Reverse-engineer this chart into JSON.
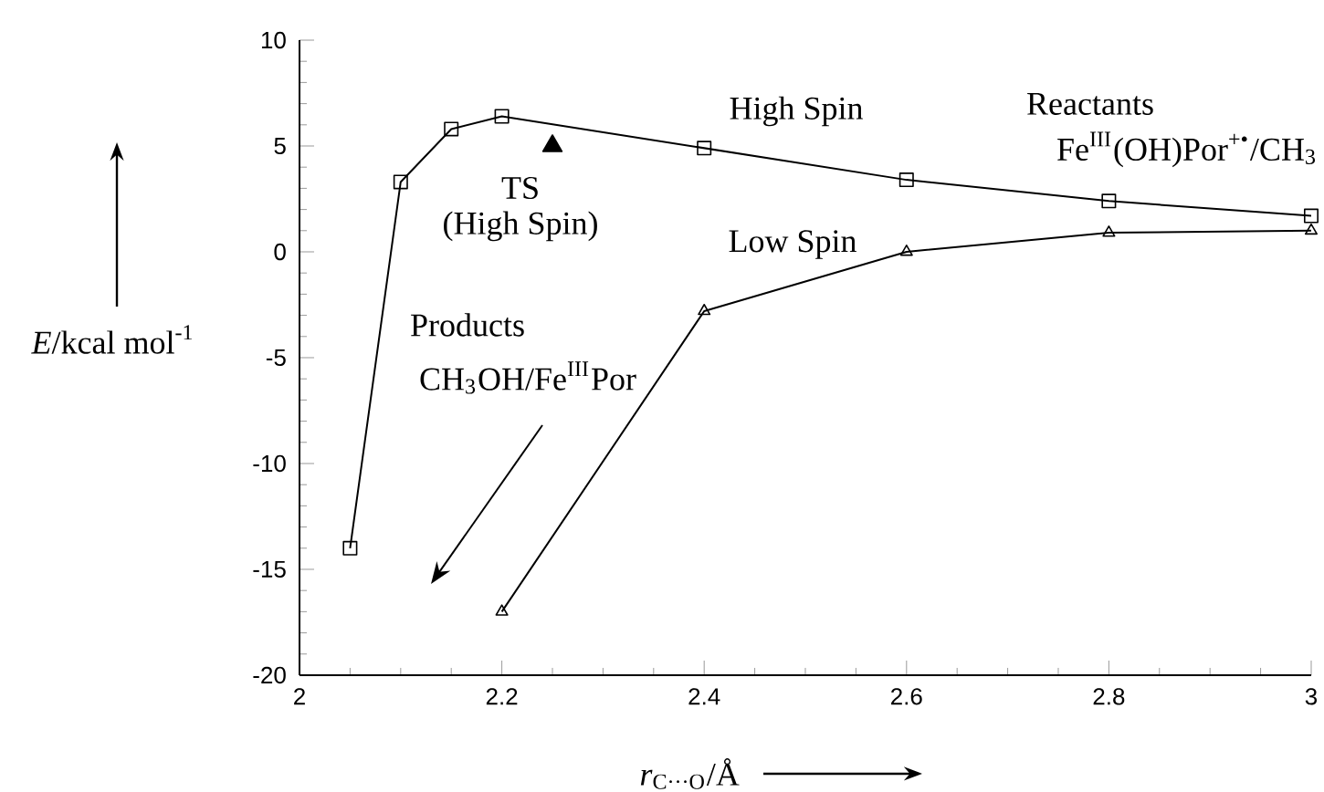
{
  "chart_data": {
    "type": "line",
    "xlabel": "*r*$_{C···O}$/Å",
    "ylabel": "*E*/kcal mol$^{-1}$",
    "xlim": [
      2,
      3
    ],
    "ylim": [
      -20,
      10
    ],
    "xticks": [
      2,
      2.2,
      2.4,
      2.6,
      2.8,
      3
    ],
    "yticks": [
      -20,
      -15,
      -10,
      -5,
      0,
      5,
      10
    ],
    "grid": false,
    "series": [
      {
        "name": "High Spin",
        "color": "#000000",
        "marker": "square",
        "x": [
          2.05,
          2.1,
          2.15,
          2.2,
          2.4,
          2.6,
          2.8,
          3.0
        ],
        "values": [
          -14,
          3.3,
          5.8,
          6.4,
          4.9,
          3.4,
          2.4,
          1.7
        ]
      },
      {
        "name": "Low Spin",
        "color": "#000000",
        "marker": "triangle",
        "x": [
          2.2,
          2.4,
          2.6,
          2.8,
          3.0
        ],
        "values": [
          -17,
          -2.8,
          0,
          0.9,
          1.0
        ]
      },
      {
        "type": "scatter",
        "color": "#000000",
        "marker": "triangle",
        "x": [
          2.25
        ],
        "values": [
          5.0
        ]
      }
    ],
    "annotations": [
      "TS",
      "(High Spin)",
      "Reactants",
      "Fe$^{III}$(OH)Por$^{+•}$/CH$_{3}$",
      "Products",
      "CH$_{3}$OH/Fe$^{III}$Por"
    ]
  }
}
